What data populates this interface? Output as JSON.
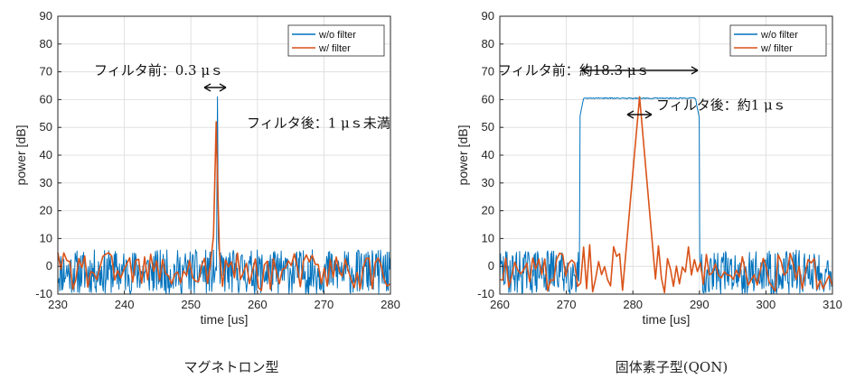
{
  "colors": {
    "without_filter": "#0072BD",
    "with_filter": "#D95319",
    "grid": "#e0e0e0",
    "axis": "#262626"
  },
  "chart_data": [
    {
      "type": "line",
      "caption": "マグネトロン型",
      "xlabel": "time [us]",
      "ylabel": "power [dB]",
      "xlim": [
        230,
        280
      ],
      "ylim": [
        -10,
        90
      ],
      "xticks": [
        230,
        240,
        250,
        260,
        270,
        280
      ],
      "yticks": [
        -10,
        0,
        10,
        20,
        30,
        40,
        50,
        60,
        70,
        80,
        90
      ],
      "grid": true,
      "legend_position": "top-right",
      "series": [
        {
          "name": "w/o filter",
          "color": "#0072BD",
          "description": "noise floor between about -10 and 6 dB over the whole span, sharp pulse peaking at 61 dB at about 254 us (width about 0.3 us)",
          "noise_range": [
            -10,
            6
          ],
          "pulse": {
            "center": 254,
            "width": 0.3,
            "peak": 61
          }
        },
        {
          "name": "w/ filter",
          "color": "#D95319",
          "description": "filtered noise between about -9 and 5 dB, triangular pulse peaking at 52 dB at about 253.8 us (width under 1 us)",
          "noise_range": [
            -9,
            5
          ],
          "pulse": {
            "center": 253.8,
            "width": 1.0,
            "peak": 52
          }
        }
      ],
      "annotations": [
        {
          "text": "フィルタ前：0.3 μｓ",
          "x": 252.2,
          "y": 70.5
        },
        {
          "text": "フィルタ後：1 μｓ未満",
          "x": 255.3,
          "y": 51.5
        }
      ]
    },
    {
      "type": "line",
      "caption": "固体素子型(QON)",
      "xlabel": "time [us]",
      "ylabel": "power [dB]",
      "xlim": [
        260,
        310
      ],
      "ylim": [
        -10,
        90
      ],
      "xticks": [
        260,
        270,
        280,
        290,
        300,
        310
      ],
      "yticks": [
        -10,
        0,
        10,
        20,
        30,
        40,
        50,
        60,
        70,
        80,
        90
      ],
      "grid": true,
      "legend_position": "top-right",
      "series": [
        {
          "name": "w/o filter",
          "color": "#0072BD",
          "description": "noise between about -10 and 6 dB, flat-top pulse at about 60.5 dB from about 272 us to 290 us (about 18.3 us long)",
          "noise_range": [
            -10,
            6
          ],
          "pulse": {
            "start": 272,
            "end": 290,
            "peak": 60.5
          }
        },
        {
          "name": "w/ filter",
          "color": "#D95319",
          "description": "filtered noise between about -9 and 5 dB, narrow compressed pulse peaking at 61 dB at about 281 us (about 1 us wide)",
          "noise_range": [
            -9,
            5
          ],
          "pulse": {
            "center": 281,
            "width": 1.0,
            "peak": 61
          }
        }
      ],
      "annotations": [
        {
          "text": "フィルタ前：約18.3 μｓ",
          "x": 281,
          "y": 70.5
        },
        {
          "text": "フィルタ後：約1 μｓ",
          "x": 282.5,
          "y": 58.0
        }
      ]
    }
  ]
}
